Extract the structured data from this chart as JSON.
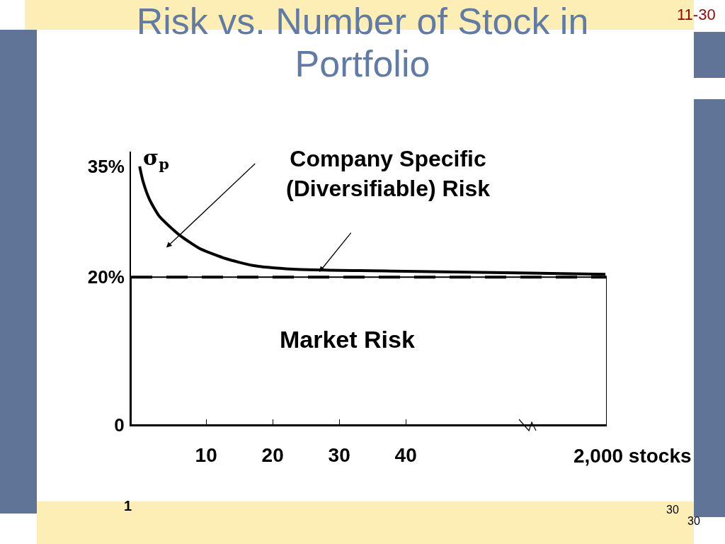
{
  "chart_data": {
    "type": "line",
    "title": "Risk vs. Number of Stock in Portfolio",
    "ylabel": "σ$_{p}$",
    "x": [
      0,
      0.5,
      1.5,
      3,
      6,
      9,
      13,
      17,
      23,
      40,
      55,
      70
    ],
    "series": [
      {
        "color": "#000000",
        "values": [
          35,
          33,
          30.5,
          28.2,
          25.7,
          23.9,
          22.5,
          21.6,
          21.1,
          20.8,
          20.6,
          20.4
        ]
      }
    ],
    "xlim": [
      -1.3,
      70.2
    ],
    "xticks": [
      10,
      20,
      30,
      40
    ],
    "ylim": [
      0,
      37
    ],
    "yticks": [
      0,
      {
        "value": 20,
        "label": "20%"
      },
      {
        "value": 35,
        "label": "35%"
      }
    ],
    "ref_lines": [
      {
        "axis": "y",
        "value": 20,
        "color": "#000000",
        "line_style": "dashed"
      }
    ],
    "bands": [
      {
        "axis": "y",
        "from": 0,
        "to": 20,
        "label": "Market Risk",
        "color": "#ffffff"
      }
    ],
    "annotations": [
      "Company Specific\n(Diversifiable) Risk",
      "11-30",
      "1",
      "30",
      "30",
      "2,000 stocks"
    ],
    "grid": false,
    "marker": "none",
    "line_style": "solid"
  }
}
